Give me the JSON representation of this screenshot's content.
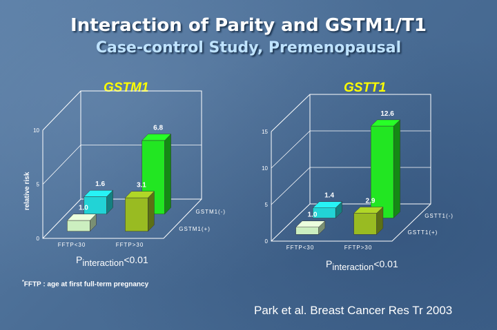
{
  "slide": {
    "title": "Interaction of Parity and GSTM1/T1",
    "subtitle": "Case-control Study, Premenopausal",
    "footnote_mark": "*",
    "footnote": "FFTP : age at first full-term pregnancy",
    "citation": "Park et al. Breast Cancer Res Tr  2003"
  },
  "colors": {
    "frame": "#ffffff",
    "cyan": "#22d3d6",
    "light_green": "#ccefc0",
    "olive": "#99bb22",
    "bright_green": "#22e622"
  },
  "chart_data": [
    {
      "type": "bar",
      "title": "GSTM1",
      "ylabel": "relative risk",
      "ylim": [
        0,
        10
      ],
      "yticks": [
        "0",
        "5",
        "10"
      ],
      "categories": [
        "FFTP<30",
        "FFTP>30"
      ],
      "series": [
        {
          "name": "GSTM1(-)",
          "values": [
            1.6,
            6.8
          ],
          "labels": [
            "1.6",
            "6.8"
          ]
        },
        {
          "name": "GSTM1(+)",
          "values": [
            1.0,
            3.1
          ],
          "labels": [
            "1.0",
            "3.1"
          ]
        }
      ],
      "p_interaction": {
        "p": "P",
        "sub": "interaction",
        "value": "<0.01"
      }
    },
    {
      "type": "bar",
      "title": "GSTT1",
      "ylabel": "",
      "ylim": [
        0,
        15
      ],
      "yticks": [
        "0",
        "5",
        "10",
        "15"
      ],
      "categories": [
        "FFTP<30",
        "FFTP>30"
      ],
      "series": [
        {
          "name": "GSTT1(-)",
          "values": [
            1.4,
            12.6
          ],
          "labels": [
            "1.4",
            "12.6"
          ]
        },
        {
          "name": "GSTT1(+)",
          "values": [
            1.0,
            2.9
          ],
          "labels": [
            "1.0",
            "2.9"
          ]
        }
      ],
      "p_interaction": {
        "p": "P",
        "sub": "interaction",
        "value": "<0.01"
      }
    }
  ]
}
